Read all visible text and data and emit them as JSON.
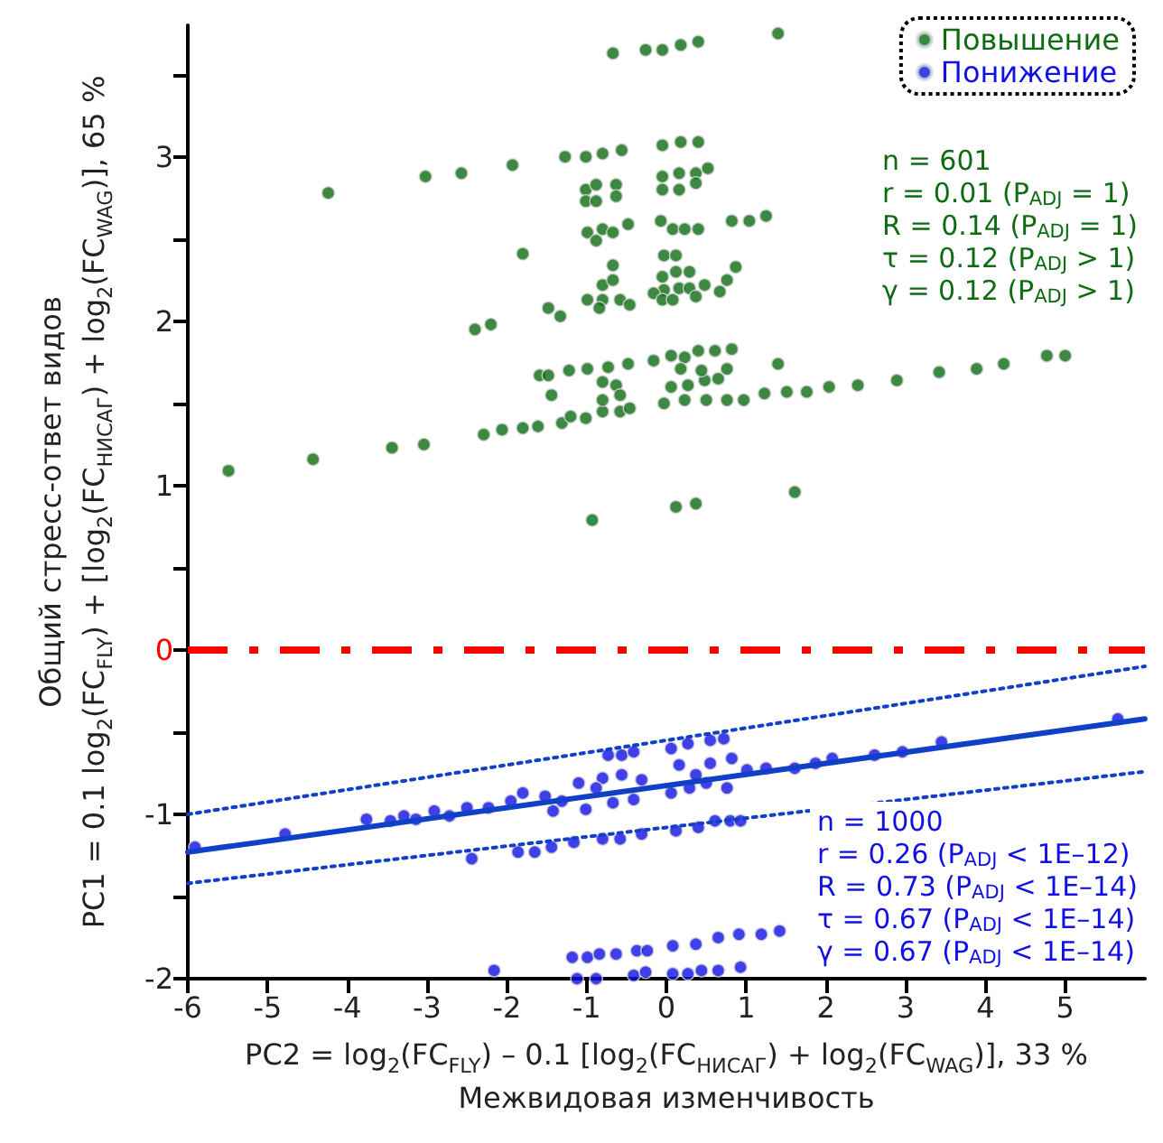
{
  "chart_data": {
    "type": "scatter",
    "xlabel": "PC2 = log$_{2}$(FC$_{FLY}$) – 0.1 [log$_{2}$(FC$_{НИСАГ}$) + log$_{2}$(FC$_{WAG}$)], 33 %\nМежвидовая изменчивость",
    "ylabel": "Общий стресс-ответ видов\nPC1 = 0.1 log$_{2}$(FC$_{FLY}$) + [log$_{2}$(FC$_{НИСАГ}$) + log$_{2}$(FC$_{WAG}$)], 65 %",
    "xlim": [
      -6,
      6
    ],
    "xticks": [
      -6,
      -5,
      -4,
      -3,
      -2,
      -1,
      0,
      1,
      2,
      3,
      4,
      5
    ],
    "ylim": [
      -2,
      3.8
    ],
    "yticks": [
      -2,
      {
        "value": -1.5,
        "label": null
      },
      -1,
      {
        "value": -0.5,
        "label": null
      },
      0,
      {
        "value": 0.5,
        "label": null
      },
      1,
      {
        "value": 1.5,
        "label": null
      },
      2,
      {
        "value": 2.5,
        "label": null
      },
      3,
      {
        "value": 3.5,
        "label": null
      }
    ],
    "grid": false,
    "legend": "top right",
    "marker": "circle",
    "series": [
      {
        "name": "Повышение",
        "color": "#0d6b12",
        "x": [
          -5.49,
          -4.43,
          -4.24,
          -3.44,
          -3.04,
          -3.02,
          -2.57,
          -2.4,
          -2.2,
          -2.29,
          -2.06,
          -1.8,
          -1.93,
          -1.8,
          -1.61,
          -1.59,
          -1.48,
          -1.48,
          -1.33,
          -1.44,
          -1.27,
          -1.01,
          -0.8,
          -0.56,
          -1.22,
          -0.99,
          -0.73,
          -0.48,
          -1.31,
          -1.2,
          -1.01,
          -0.8,
          -0.58,
          -0.46,
          -1.01,
          -0.88,
          -0.63,
          -1.01,
          -0.88,
          -0.63,
          -0.99,
          -0.8,
          -0.67,
          -0.48,
          -0.88,
          -0.67,
          -0.8,
          -0.67,
          -0.99,
          -0.8,
          -0.58,
          -0.46,
          -0.84,
          -0.8,
          -0.63,
          -0.8,
          -0.58,
          -0.67,
          -0.26,
          -0.05,
          0.18,
          0.4,
          -0.93,
          0.12,
          0.37,
          -0.05,
          0.18,
          0.4,
          -0.05,
          0.16,
          0.37,
          0.52,
          -0.05,
          0.16,
          0.37,
          -0.07,
          0.08,
          0.23,
          0.4,
          -0.03,
          0.12,
          -0.05,
          0.12,
          0.29,
          -0.03,
          0.16,
          0.29,
          0.48,
          0.67,
          -0.16,
          -0.05,
          0.08,
          0.37,
          -0.16,
          0.06,
          0.23,
          0.4,
          0.61,
          0.06,
          0.27,
          0.48,
          0.65,
          -0.03,
          0.23,
          0.5,
          0.18,
          0.44,
          1.4,
          0.82,
          1.04,
          1.25,
          0.87,
          0.76,
          0.82,
          0.76,
          1.4,
          0.76,
          0.97,
          1.23,
          1.51,
          1.76,
          2.04,
          2.4,
          2.89,
          3.42,
          3.89,
          4.23,
          4.77,
          5.0,
          1.61
        ],
        "values": [
          1.09,
          1.16,
          2.78,
          1.23,
          1.25,
          2.88,
          2.9,
          1.95,
          1.98,
          1.31,
          1.34,
          1.35,
          2.95,
          2.41,
          1.36,
          1.67,
          1.67,
          2.08,
          2.03,
          1.55,
          3.0,
          3.0,
          3.02,
          3.04,
          1.7,
          1.71,
          1.72,
          1.74,
          1.38,
          1.42,
          1.41,
          1.45,
          1.45,
          1.47,
          2.8,
          2.83,
          2.83,
          2.73,
          2.73,
          2.76,
          2.54,
          2.56,
          2.54,
          2.59,
          2.49,
          2.34,
          2.22,
          2.25,
          2.13,
          2.13,
          2.13,
          2.1,
          2.08,
          1.63,
          1.61,
          1.52,
          1.55,
          3.63,
          3.65,
          3.65,
          3.68,
          3.7,
          0.79,
          0.87,
          0.89,
          3.07,
          3.09,
          3.09,
          2.88,
          2.9,
          2.9,
          2.93,
          2.8,
          2.8,
          2.84,
          2.61,
          2.56,
          2.56,
          2.56,
          2.4,
          2.4,
          2.27,
          2.3,
          2.3,
          2.19,
          2.2,
          2.2,
          2.22,
          2.18,
          2.17,
          2.13,
          2.13,
          2.15,
          1.76,
          1.79,
          1.78,
          1.82,
          1.82,
          1.6,
          1.61,
          1.64,
          1.65,
          1.5,
          1.52,
          1.52,
          1.71,
          1.7,
          3.75,
          2.61,
          2.61,
          2.64,
          2.33,
          2.25,
          1.83,
          1.71,
          1.74,
          1.52,
          1.52,
          1.56,
          1.57,
          1.57,
          1.6,
          1.61,
          1.64,
          1.69,
          1.71,
          1.74,
          1.79,
          1.79,
          0.96
        ]
      },
      {
        "name": "Понижение",
        "color": "#1010e6",
        "x": [
          -5.91,
          -4.78,
          -3.76,
          -3.46,
          -3.29,
          -3.14,
          -2.91,
          -2.72,
          -2.5,
          -2.23,
          -1.95,
          -1.8,
          -1.52,
          -1.42,
          -2.44,
          -1.86,
          -1.65,
          -1.44,
          -1.16,
          -1.1,
          -0.8,
          -0.56,
          -0.31,
          -1.31,
          -1.01,
          -0.88,
          -0.67,
          -0.41,
          -0.73,
          -0.56,
          -0.41,
          -0.8,
          -0.58,
          -0.31,
          0.06,
          0.27,
          0.55,
          0.16,
          0.37,
          0.55,
          0.06,
          0.29,
          0.5,
          0.12,
          0.4,
          0.61,
          -2.16,
          -1.18,
          -0.99,
          -0.84,
          -0.63,
          -0.37,
          -0.24,
          0.08,
          0.37,
          0.65,
          -1.12,
          -0.88,
          -0.41,
          -0.26,
          0.08,
          0.27,
          0.44,
          0.65,
          0.72,
          0.82,
          0.76,
          1.01,
          1.25,
          1.61,
          1.87,
          2.08,
          2.61,
          2.96,
          3.45,
          5.66,
          0.8,
          0.93,
          0.91,
          1.19,
          1.42,
          0.93
        ],
        "values": [
          -1.2,
          -1.12,
          -1.03,
          -1.04,
          -1.01,
          -1.03,
          -0.98,
          -1.01,
          -0.96,
          -0.96,
          -0.92,
          -0.87,
          -0.89,
          -0.98,
          -1.27,
          -1.23,
          -1.23,
          -1.2,
          -1.17,
          -0.81,
          -0.78,
          -0.76,
          -0.79,
          -0.92,
          -0.97,
          -0.84,
          -0.93,
          -0.91,
          -0.64,
          -0.64,
          -0.62,
          -1.15,
          -1.15,
          -1.12,
          -0.6,
          -0.57,
          -0.55,
          -0.7,
          -0.76,
          -0.69,
          -0.87,
          -0.84,
          -0.81,
          -1.1,
          -1.08,
          -1.04,
          -1.95,
          -1.87,
          -1.87,
          -1.85,
          -1.85,
          -1.83,
          -1.83,
          -1.8,
          -1.79,
          -1.75,
          -2.0,
          -2.0,
          -1.98,
          -1.96,
          -1.97,
          -1.97,
          -1.95,
          -1.95,
          -0.54,
          -0.66,
          -0.84,
          -0.73,
          -0.72,
          -0.72,
          -0.69,
          -0.66,
          -0.64,
          -0.62,
          -0.56,
          -0.42,
          -1.04,
          -1.04,
          -1.73,
          -1.73,
          -1.71,
          -1.93
        ]
      },
      {
        "type": "line",
        "marker": "none",
        "color": "#1040c8",
        "line_style": "solid",
        "x": [
          -6,
          6
        ],
        "values": [
          -1.23,
          -0.42
        ]
      },
      {
        "type": "line",
        "marker": "none",
        "color": "#1040c8",
        "line_style": "dotted",
        "x": [
          -6,
          6
        ],
        "values": [
          -1.0,
          -0.1
        ]
      },
      {
        "type": "line",
        "marker": "none",
        "color": "#1040c8",
        "line_style": "dotted",
        "x": [
          -6,
          6
        ],
        "values": [
          -1.42,
          -0.74
        ]
      }
    ],
    "ref_lines": [
      {
        "axis": "y",
        "value": 0,
        "color": "#ff0000",
        "line_style": "dashed"
      }
    ],
    "annotations": [
      "n = 601\nr = 0.01 (P$_{ADJ}$ = 1)\nR = 0.14 (P$_{ADJ}$ = 1)\nτ = 0.12 (P$_{ADJ}$ > 1)\nγ = 0.12 (P$_{ADJ}$ > 1)",
      "n = 1000\nr = 0.26 (P$_{ADJ}$ < 1E–12)\nR = 0.73 (P$_{ADJ}$ < 1E–14)\nτ = 0.67 (P$_{ADJ}$ < 1E–14)\nγ = 0.67 (P$_{ADJ}$ < 1E–14)"
    ]
  }
}
